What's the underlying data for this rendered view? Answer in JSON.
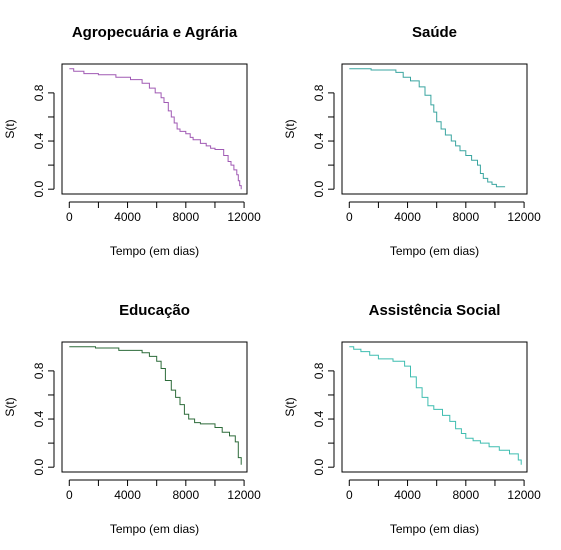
{
  "chart_data": [
    {
      "type": "line",
      "title": "Agropecuária e Agrária",
      "xlabel": "Tempo (em dias)",
      "ylabel": "S(t)",
      "xlim": [
        -500,
        12200
      ],
      "ylim": [
        -0.04,
        1.04
      ],
      "xticks": [
        0,
        4000,
        8000,
        12000
      ],
      "yticks": [
        0.0,
        0.4,
        0.8
      ],
      "xtick_labels": [
        "0",
        "4000",
        "8000",
        "12000"
      ],
      "ytick_labels": [
        "0.0",
        "0.4",
        "0.8"
      ],
      "grid": false,
      "color": "#a05ab4",
      "series": [
        {
          "x": [
            0,
            300,
            1000,
            2000,
            3200,
            4200,
            5000,
            5500,
            5900,
            6300,
            6500,
            6800,
            7000,
            7200,
            7400,
            7600,
            8000,
            8300,
            8500,
            9000,
            9400,
            9700,
            10000,
            10600,
            10900,
            11100,
            11300,
            11500,
            11600,
            11700,
            11800
          ],
          "y": [
            1.0,
            0.98,
            0.96,
            0.95,
            0.93,
            0.91,
            0.88,
            0.84,
            0.8,
            0.76,
            0.72,
            0.65,
            0.6,
            0.55,
            0.5,
            0.48,
            0.46,
            0.43,
            0.41,
            0.38,
            0.36,
            0.34,
            0.33,
            0.28,
            0.23,
            0.2,
            0.16,
            0.12,
            0.07,
            0.03,
            0.0
          ]
        }
      ]
    },
    {
      "type": "line",
      "title": "Saúde",
      "xlabel": "Tempo (em dias)",
      "ylabel": "S(t)",
      "xlim": [
        -500,
        12200
      ],
      "ylim": [
        -0.04,
        1.04
      ],
      "xticks": [
        0,
        4000,
        8000,
        12000
      ],
      "yticks": [
        0.0,
        0.4,
        0.8
      ],
      "xtick_labels": [
        "0",
        "4000",
        "8000",
        "12000"
      ],
      "ytick_labels": [
        "0.0",
        "0.4",
        "0.8"
      ],
      "grid": false,
      "color": "#3aa5a0",
      "series": [
        {
          "x": [
            0,
            1500,
            3200,
            3700,
            4200,
            4800,
            5200,
            5600,
            5800,
            6000,
            6300,
            6600,
            7000,
            7300,
            7600,
            8000,
            8400,
            8800,
            9000,
            9200,
            9500,
            9800,
            10100,
            10700
          ],
          "y": [
            1.0,
            0.99,
            0.97,
            0.93,
            0.9,
            0.85,
            0.78,
            0.7,
            0.64,
            0.56,
            0.5,
            0.45,
            0.4,
            0.36,
            0.32,
            0.28,
            0.24,
            0.2,
            0.13,
            0.09,
            0.06,
            0.04,
            0.02,
            0.02
          ]
        }
      ]
    },
    {
      "type": "line",
      "title": "Educação",
      "xlabel": "Tempo (em dias)",
      "ylabel": "S(t)",
      "xlim": [
        -500,
        12200
      ],
      "ylim": [
        -0.04,
        1.04
      ],
      "xticks": [
        0,
        4000,
        8000,
        12000
      ],
      "yticks": [
        0.0,
        0.4,
        0.8
      ],
      "xtick_labels": [
        "0",
        "4000",
        "8000",
        "12000"
      ],
      "ytick_labels": [
        "0.0",
        "0.4",
        "0.8"
      ],
      "grid": false,
      "color": "#2d6b3a",
      "series": [
        {
          "x": [
            0,
            1800,
            3400,
            5000,
            5500,
            6000,
            6300,
            6600,
            7000,
            7300,
            7600,
            7900,
            8200,
            8600,
            9000,
            10000,
            10500,
            11000,
            11400,
            11600,
            11800
          ],
          "y": [
            1.0,
            0.99,
            0.97,
            0.95,
            0.92,
            0.88,
            0.82,
            0.72,
            0.64,
            0.58,
            0.52,
            0.44,
            0.4,
            0.37,
            0.36,
            0.33,
            0.29,
            0.26,
            0.21,
            0.08,
            0.02
          ]
        }
      ]
    },
    {
      "type": "line",
      "title": "Assistência Social",
      "xlabel": "Tempo (em dias)",
      "ylabel": "S(t)",
      "xlim": [
        -500,
        12200
      ],
      "ylim": [
        -0.04,
        1.04
      ],
      "xticks": [
        0,
        4000,
        8000,
        12000
      ],
      "yticks": [
        0.0,
        0.4,
        0.8
      ],
      "xtick_labels": [
        "0",
        "4000",
        "8000",
        "12000"
      ],
      "ytick_labels": [
        "0.0",
        "0.4",
        "0.8"
      ],
      "grid": false,
      "color": "#3fbdb0",
      "series": [
        {
          "x": [
            0,
            300,
            800,
            1400,
            2000,
            3000,
            3800,
            4200,
            4600,
            5000,
            5400,
            5800,
            6400,
            6900,
            7300,
            7700,
            8000,
            8500,
            9000,
            9600,
            10300,
            11000,
            11600,
            11800
          ],
          "y": [
            1.0,
            0.98,
            0.96,
            0.93,
            0.9,
            0.88,
            0.84,
            0.75,
            0.66,
            0.58,
            0.51,
            0.48,
            0.43,
            0.38,
            0.32,
            0.28,
            0.24,
            0.22,
            0.2,
            0.17,
            0.14,
            0.11,
            0.06,
            0.02
          ]
        }
      ]
    }
  ]
}
